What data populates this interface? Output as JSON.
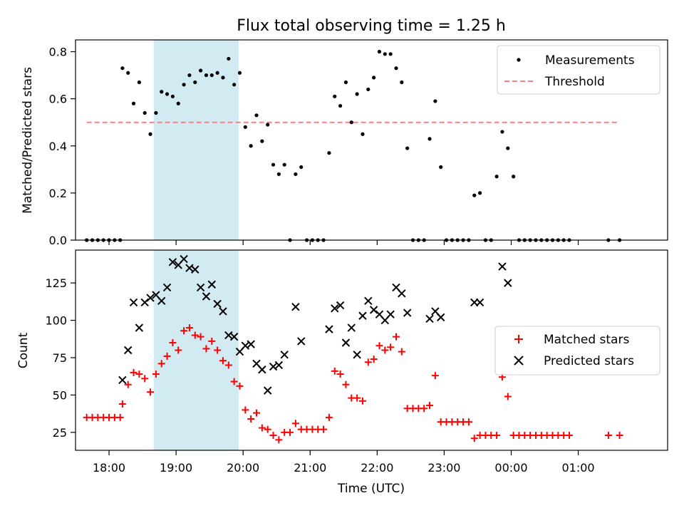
{
  "chart_data": [
    {
      "type": "scatter",
      "title": "Flux total observing time = 1.25 h",
      "xlabel": "",
      "ylabel": "Matched/Predicted stars",
      "ylim": [
        0,
        0.85
      ],
      "yticks": [
        "0.0",
        "0.2",
        "0.4",
        "0.6",
        "0.8"
      ],
      "ytick_values": [
        0,
        0.2,
        0.4,
        0.6,
        0.8
      ],
      "xlim": [
        "17:30",
        "02:20"
      ],
      "shaded_span": [
        "18:40",
        "19:56"
      ],
      "shade_color": "#add8e6",
      "legend": "top-right",
      "series": [
        {
          "name": "Measurements",
          "marker": "dot",
          "color": "#000000",
          "points": [
            [
              "17:40",
              0
            ],
            [
              "17:45",
              0
            ],
            [
              "17:50",
              0
            ],
            [
              "17:55",
              0
            ],
            [
              "18:00",
              0
            ],
            [
              "18:05",
              0
            ],
            [
              "18:10",
              0
            ],
            [
              "18:12",
              0.73
            ],
            [
              "18:17",
              0.71
            ],
            [
              "18:22",
              0.58
            ],
            [
              "18:27",
              0.67
            ],
            [
              "18:32",
              0.54
            ],
            [
              "18:37",
              0.45
            ],
            [
              "18:42",
              0.54
            ],
            [
              "18:47",
              0.63
            ],
            [
              "18:52",
              0.62
            ],
            [
              "18:57",
              0.61
            ],
            [
              "19:02",
              0.58
            ],
            [
              "19:07",
              0.66
            ],
            [
              "19:12",
              0.7
            ],
            [
              "19:17",
              0.67
            ],
            [
              "19:22",
              0.72
            ],
            [
              "19:27",
              0.7
            ],
            [
              "19:32",
              0.7
            ],
            [
              "19:37",
              0.71
            ],
            [
              "19:42",
              0.69
            ],
            [
              "19:47",
              0.77
            ],
            [
              "19:52",
              0.66
            ],
            [
              "19:57",
              0.71
            ],
            [
              "20:02",
              0.48
            ],
            [
              "20:07",
              0.4
            ],
            [
              "20:12",
              0.53
            ],
            [
              "20:17",
              0.42
            ],
            [
              "20:22",
              0.49
            ],
            [
              "20:27",
              0.32
            ],
            [
              "20:32",
              0.28
            ],
            [
              "20:37",
              0.32
            ],
            [
              "20:42",
              0
            ],
            [
              "20:47",
              0.28
            ],
            [
              "20:52",
              0.31
            ],
            [
              "20:57",
              0
            ],
            [
              "21:02",
              0
            ],
            [
              "21:07",
              0
            ],
            [
              "21:12",
              0
            ],
            [
              "21:17",
              0.37
            ],
            [
              "21:22",
              0.61
            ],
            [
              "21:27",
              0.57
            ],
            [
              "21:32",
              0.67
            ],
            [
              "21:37",
              0.5
            ],
            [
              "21:42",
              0.62
            ],
            [
              "21:47",
              0.45
            ],
            [
              "21:52",
              0.64
            ],
            [
              "21:57",
              0.69
            ],
            [
              "22:02",
              0.8
            ],
            [
              "22:07",
              0.79
            ],
            [
              "22:12",
              0.79
            ],
            [
              "22:17",
              0.73
            ],
            [
              "22:22",
              0.67
            ],
            [
              "22:27",
              0.39
            ],
            [
              "22:32",
              0
            ],
            [
              "22:37",
              0
            ],
            [
              "22:42",
              0
            ],
            [
              "22:47",
              0.43
            ],
            [
              "22:52",
              0.59
            ],
            [
              "22:57",
              0.31
            ],
            [
              "23:02",
              0
            ],
            [
              "23:07",
              0
            ],
            [
              "23:12",
              0
            ],
            [
              "23:17",
              0
            ],
            [
              "23:22",
              0
            ],
            [
              "23:27",
              0.19
            ],
            [
              "23:32",
              0.2
            ],
            [
              "23:37",
              0
            ],
            [
              "23:42",
              0
            ],
            [
              "23:47",
              0.27
            ],
            [
              "23:52",
              0.46
            ],
            [
              "23:57",
              0.39
            ],
            [
              "00:02",
              0.27
            ],
            [
              "00:07",
              0
            ],
            [
              "00:12",
              0
            ],
            [
              "00:17",
              0
            ],
            [
              "00:22",
              0
            ],
            [
              "00:27",
              0
            ],
            [
              "00:32",
              0
            ],
            [
              "00:37",
              0
            ],
            [
              "00:42",
              0
            ],
            [
              "00:47",
              0
            ],
            [
              "00:52",
              0
            ],
            [
              "01:27",
              0
            ],
            [
              "01:37",
              0
            ]
          ]
        },
        {
          "name": "Threshold",
          "style": "dashed",
          "color": "#ff7f7f",
          "points": [
            [
              "17:40",
              0.5
            ],
            [
              "01:37",
              0.5
            ]
          ]
        }
      ]
    },
    {
      "type": "scatter",
      "title": "",
      "xlabel": "Time (UTC)",
      "ylabel": "Count",
      "ylim": [
        13,
        147
      ],
      "yticks": [
        "25",
        "50",
        "75",
        "100",
        "125"
      ],
      "ytick_values": [
        25,
        50,
        75,
        100,
        125
      ],
      "xticks": [
        "18:00",
        "19:00",
        "20:00",
        "21:00",
        "22:00",
        "23:00",
        "00:00",
        "01:00"
      ],
      "xtick_minutes": [
        30,
        90,
        150,
        210,
        270,
        330,
        390,
        450
      ],
      "legend": "center-right",
      "series": [
        {
          "name": "Matched stars",
          "marker": "plus",
          "color": "#ff0000",
          "points": [
            [
              "17:40",
              35
            ],
            [
              "17:45",
              35
            ],
            [
              "17:50",
              35
            ],
            [
              "17:55",
              35
            ],
            [
              "18:00",
              35
            ],
            [
              "18:05",
              35
            ],
            [
              "18:10",
              35
            ],
            [
              "18:12",
              44
            ],
            [
              "18:17",
              57
            ],
            [
              "18:22",
              65
            ],
            [
              "18:27",
              64
            ],
            [
              "18:32",
              61
            ],
            [
              "18:37",
              52
            ],
            [
              "18:42",
              64
            ],
            [
              "18:47",
              71
            ],
            [
              "18:52",
              76
            ],
            [
              "18:57",
              85
            ],
            [
              "19:02",
              80
            ],
            [
              "19:07",
              93
            ],
            [
              "19:12",
              95
            ],
            [
              "19:17",
              90
            ],
            [
              "19:22",
              89
            ],
            [
              "19:27",
              81
            ],
            [
              "19:32",
              86
            ],
            [
              "19:37",
              80
            ],
            [
              "19:42",
              73
            ],
            [
              "19:47",
              70
            ],
            [
              "19:52",
              59
            ],
            [
              "19:57",
              56
            ],
            [
              "20:02",
              40
            ],
            [
              "20:07",
              34
            ],
            [
              "20:12",
              38
            ],
            [
              "20:17",
              28
            ],
            [
              "20:22",
              27
            ],
            [
              "20:27",
              23
            ],
            [
              "20:32",
              20
            ],
            [
              "20:37",
              25
            ],
            [
              "20:42",
              25
            ],
            [
              "20:47",
              31
            ],
            [
              "20:52",
              27
            ],
            [
              "20:57",
              27
            ],
            [
              "21:02",
              27
            ],
            [
              "21:07",
              27
            ],
            [
              "21:12",
              27
            ],
            [
              "21:17",
              35
            ],
            [
              "21:22",
              66
            ],
            [
              "21:27",
              64
            ],
            [
              "21:32",
              57
            ],
            [
              "21:37",
              48
            ],
            [
              "21:42",
              48
            ],
            [
              "21:47",
              46
            ],
            [
              "21:52",
              72
            ],
            [
              "21:57",
              74
            ],
            [
              "22:02",
              83
            ],
            [
              "22:07",
              80
            ],
            [
              "22:12",
              82
            ],
            [
              "22:17",
              89
            ],
            [
              "22:22",
              79
            ],
            [
              "22:27",
              41
            ],
            [
              "22:32",
              41
            ],
            [
              "22:37",
              41
            ],
            [
              "22:42",
              41
            ],
            [
              "22:47",
              43
            ],
            [
              "22:52",
              63
            ],
            [
              "22:57",
              32
            ],
            [
              "23:02",
              32
            ],
            [
              "23:07",
              32
            ],
            [
              "23:12",
              32
            ],
            [
              "23:17",
              32
            ],
            [
              "23:22",
              32
            ],
            [
              "23:27",
              21
            ],
            [
              "23:32",
              23
            ],
            [
              "23:37",
              23
            ],
            [
              "23:42",
              23
            ],
            [
              "23:47",
              23
            ],
            [
              "23:52",
              62
            ],
            [
              "23:57",
              49
            ],
            [
              "00:02",
              23
            ],
            [
              "00:07",
              23
            ],
            [
              "00:12",
              23
            ],
            [
              "00:17",
              23
            ],
            [
              "00:22",
              23
            ],
            [
              "00:27",
              23
            ],
            [
              "00:32",
              23
            ],
            [
              "00:37",
              23
            ],
            [
              "00:42",
              23
            ],
            [
              "00:47",
              23
            ],
            [
              "00:52",
              23
            ],
            [
              "01:27",
              23
            ],
            [
              "01:37",
              23
            ]
          ]
        },
        {
          "name": "Predicted stars",
          "marker": "x",
          "color": "#000000",
          "points": [
            [
              "18:12",
              60
            ],
            [
              "18:17",
              80
            ],
            [
              "18:22",
              112
            ],
            [
              "18:27",
              95
            ],
            [
              "18:32",
              112
            ],
            [
              "18:37",
              115
            ],
            [
              "18:42",
              117
            ],
            [
              "18:47",
              113
            ],
            [
              "18:52",
              122
            ],
            [
              "18:57",
              139
            ],
            [
              "19:02",
              137
            ],
            [
              "19:07",
              141
            ],
            [
              "19:12",
              135
            ],
            [
              "19:17",
              134
            ],
            [
              "19:22",
              122
            ],
            [
              "19:27",
              116
            ],
            [
              "19:32",
              124
            ],
            [
              "19:37",
              111
            ],
            [
              "19:42",
              106
            ],
            [
              "19:47",
              90
            ],
            [
              "19:52",
              89
            ],
            [
              "19:57",
              79
            ],
            [
              "20:02",
              83
            ],
            [
              "20:07",
              84
            ],
            [
              "20:12",
              71
            ],
            [
              "20:17",
              67
            ],
            [
              "20:22",
              53
            ],
            [
              "20:27",
              69
            ],
            [
              "20:32",
              70
            ],
            [
              "20:37",
              77
            ],
            [
              "20:47",
              109
            ],
            [
              "20:52",
              86
            ],
            [
              "21:17",
              94
            ],
            [
              "21:22",
              108
            ],
            [
              "21:27",
              110
            ],
            [
              "21:32",
              85
            ],
            [
              "21:37",
              95
            ],
            [
              "21:42",
              77
            ],
            [
              "21:47",
              103
            ],
            [
              "21:52",
              113
            ],
            [
              "21:57",
              107
            ],
            [
              "22:02",
              104
            ],
            [
              "22:07",
              100
            ],
            [
              "22:12",
              104
            ],
            [
              "22:17",
              122
            ],
            [
              "22:22",
              118
            ],
            [
              "22:27",
              105
            ],
            [
              "22:47",
              101
            ],
            [
              "22:52",
              106
            ],
            [
              "22:57",
              102
            ],
            [
              "23:27",
              112
            ],
            [
              "23:32",
              112
            ],
            [
              "23:52",
              136
            ],
            [
              "23:57",
              125
            ]
          ]
        }
      ]
    }
  ]
}
